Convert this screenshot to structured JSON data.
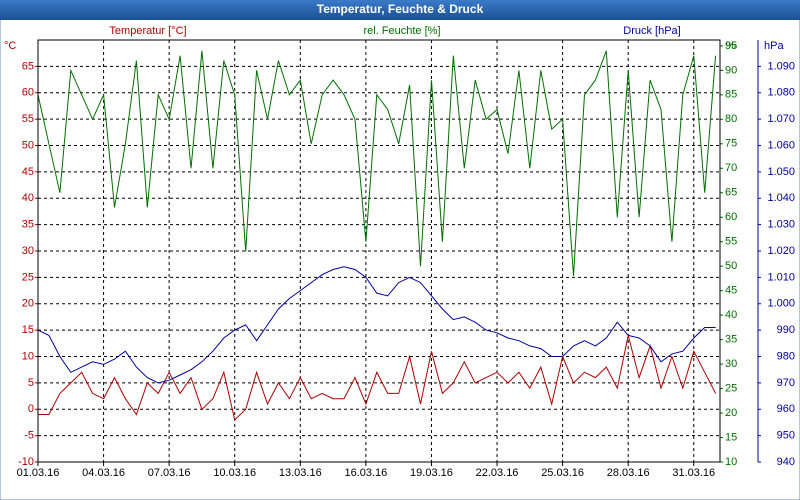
{
  "chart_data": {
    "type": "line",
    "title": "Temperatur, Feuchte & Druck",
    "ylabel": "Temperatur [°C]",
    "y2label": "rel. Feuchte [%]",
    "y3label": "Druck [hPa]",
    "yunit": "°C",
    "y2unit": "%",
    "y3unit": "hPa",
    "grid": true,
    "x": [
      0,
      0.5,
      1,
      1.5,
      2,
      2.5,
      3,
      3.5,
      4,
      4.5,
      5,
      5.5,
      6,
      6.5,
      7,
      7.5,
      8,
      8.5,
      9,
      9.5,
      10,
      10.5,
      11,
      11.5,
      12,
      12.5,
      13,
      13.5,
      14,
      14.5,
      15,
      15.5,
      16,
      16.5,
      17,
      17.5,
      18,
      18.5,
      19,
      19.5,
      20,
      20.5,
      21,
      21.5,
      22,
      22.5,
      23,
      23.5,
      24,
      24.5,
      25,
      25.5,
      26,
      26.5,
      27,
      27.5,
      28,
      28.5,
      29,
      29.5,
      30,
      30.5,
      31
    ],
    "xlim": [
      0,
      31.2
    ],
    "xticks": [
      {
        "value": 0,
        "label": "01.03.16"
      },
      {
        "value": 3,
        "label": "04.03.16"
      },
      {
        "value": 6,
        "label": "07.03.16"
      },
      {
        "value": 9,
        "label": "10.03.16"
      },
      {
        "value": 12,
        "label": "13.03.16"
      },
      {
        "value": 15,
        "label": "16.03.16"
      },
      {
        "value": 18,
        "label": "19.03.16"
      },
      {
        "value": 21,
        "label": "22.03.16"
      },
      {
        "value": 24,
        "label": "25.03.16"
      },
      {
        "value": 27,
        "label": "28.03.16"
      },
      {
        "value": 30,
        "label": "31.03.16"
      }
    ],
    "ylim": [
      -10,
      70
    ],
    "yticks": [
      -10,
      -5,
      0,
      5,
      10,
      15,
      20,
      25,
      30,
      35,
      40,
      45,
      50,
      55,
      60,
      65
    ],
    "y2lim": [
      10,
      96.2
    ],
    "y2ticks": [
      10,
      15,
      20,
      25,
      30,
      35,
      40,
      45,
      50,
      55,
      60,
      65,
      70,
      75,
      80,
      85,
      90,
      95
    ],
    "y3lim": [
      940,
      1100
    ],
    "y3ticks": [
      {
        "value": 940,
        "label": "940"
      },
      {
        "value": 950,
        "label": "950"
      },
      {
        "value": 960,
        "label": "960"
      },
      {
        "value": 970,
        "label": "970"
      },
      {
        "value": 980,
        "label": "980"
      },
      {
        "value": 990,
        "label": "990"
      },
      {
        "value": 1000,
        "label": "1.000"
      },
      {
        "value": 1010,
        "label": "1.010"
      },
      {
        "value": 1020,
        "label": "1.020"
      },
      {
        "value": 1030,
        "label": "1.030"
      },
      {
        "value": 1040,
        "label": "1.040"
      },
      {
        "value": 1050,
        "label": "1.050"
      },
      {
        "value": 1060,
        "label": "1.060"
      },
      {
        "value": 1070,
        "label": "1.070"
      },
      {
        "value": 1080,
        "label": "1.080"
      },
      {
        "value": 1090,
        "label": "1.090"
      }
    ],
    "series": [
      {
        "name": "Temperatur [°C]",
        "color": "#b00000",
        "axis": "y",
        "values": [
          -1,
          -1,
          3,
          5,
          7,
          3,
          2,
          6,
          2,
          -1,
          5,
          3,
          7,
          3,
          6,
          0,
          2,
          7,
          -2,
          0,
          7,
          1,
          5,
          2,
          6,
          2,
          3,
          2,
          2,
          6,
          1,
          7,
          3,
          3,
          10,
          1,
          11,
          3,
          5,
          9,
          5,
          6,
          7,
          5,
          7,
          4,
          8,
          1,
          10,
          5,
          7,
          6,
          8,
          4,
          14,
          6,
          12,
          4,
          10,
          4,
          11,
          7,
          3
        ]
      },
      {
        "name": "rel. Feuchte [%]",
        "color": "#007000",
        "axis": "y2",
        "values": [
          85,
          75,
          65,
          90,
          85,
          80,
          85,
          62,
          75,
          92,
          62,
          85,
          80,
          93,
          70,
          94,
          70,
          92,
          85,
          53,
          90,
          80,
          92,
          85,
          88,
          75,
          85,
          88,
          85,
          80,
          55,
          85,
          82,
          75,
          87,
          50,
          88,
          55,
          93,
          70,
          88,
          80,
          82,
          73,
          90,
          70,
          90,
          78,
          80,
          48,
          85,
          88,
          94,
          60,
          90,
          60,
          88,
          82,
          55,
          85,
          93,
          65,
          93
        ]
      },
      {
        "name": "Druck [hPa]",
        "color": "#0000a0",
        "axis": "y3",
        "values": [
          990,
          988,
          980,
          974,
          976,
          978,
          977,
          979,
          982,
          976,
          972,
          970,
          971,
          973,
          975,
          978,
          982,
          987,
          990,
          992,
          986,
          992,
          998,
          1002,
          1005,
          1008,
          1011,
          1013,
          1014,
          1013,
          1010,
          1004,
          1003,
          1008,
          1010,
          1008,
          1003,
          998,
          994,
          995,
          993,
          990,
          989,
          987,
          986,
          984,
          983,
          980,
          980,
          984,
          986,
          984,
          987,
          993,
          988,
          987,
          984,
          978,
          981,
          982,
          987,
          991,
          991
        ]
      }
    ]
  }
}
